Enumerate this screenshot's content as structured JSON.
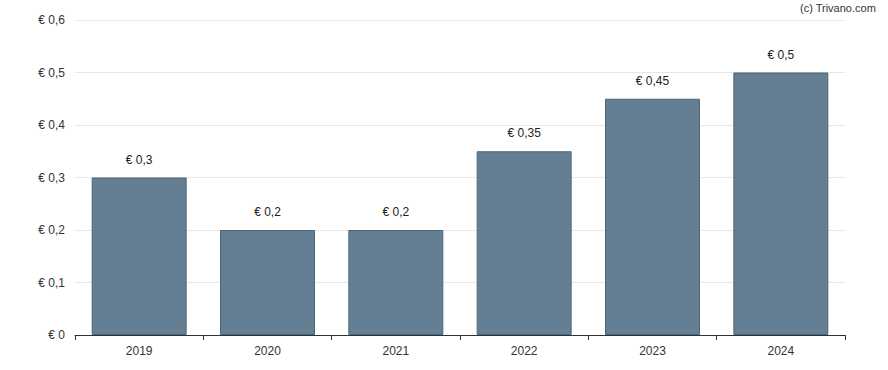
{
  "chart_data": {
    "type": "bar",
    "annotation": "(c) Trivano.com",
    "categories": [
      "2019",
      "2020",
      "2021",
      "2022",
      "2023",
      "2024"
    ],
    "values": [
      0.3,
      0.2,
      0.2,
      0.35,
      0.45,
      0.5
    ],
    "value_labels": [
      "€ 0,3",
      "€ 0,2",
      "€ 0,2",
      "€ 0,35",
      "€ 0,45",
      "€ 0,5"
    ],
    "data_labels": true,
    "color": "#647f93",
    "ylim": [
      0,
      0.6
    ],
    "yticks": [
      {
        "value": 0,
        "label": "€ 0"
      },
      {
        "value": 0.1,
        "label": "€ 0,1"
      },
      {
        "value": 0.2,
        "label": "€ 0,2"
      },
      {
        "value": 0.3,
        "label": "€ 0,3"
      },
      {
        "value": 0.4,
        "label": "€ 0,4"
      },
      {
        "value": 0.5,
        "label": "€ 0,5"
      },
      {
        "value": 0.6,
        "label": "€ 0,6"
      }
    ],
    "grid": true
  }
}
